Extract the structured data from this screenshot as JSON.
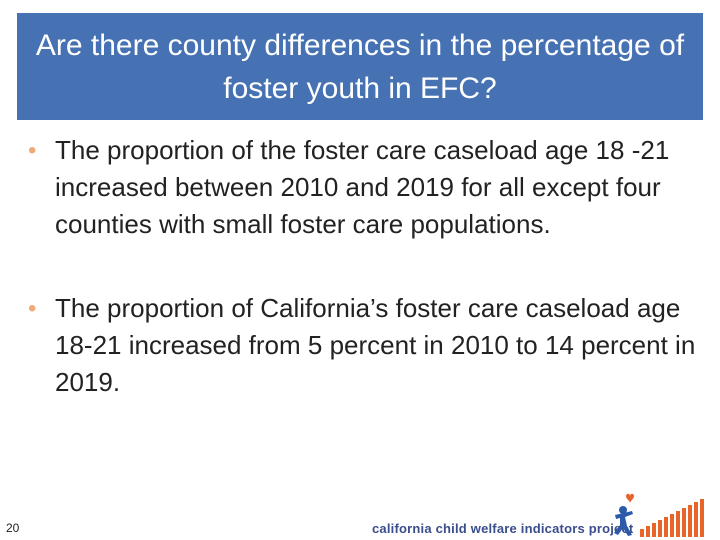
{
  "slide": {
    "title": "Are there county differences in the percentage of foster youth in EFC?",
    "bullets": [
      "The proportion of the foster care caseload age 18 -21 increased between 2010 and 2019 for all except four counties with small foster care populations.",
      "The proportion of California’s foster care caseload age 18-21 increased from 5 percent in 2010 to 14 percent in 2019."
    ],
    "bullet_glyph": "•",
    "page_number": "20"
  },
  "footer": {
    "logo_text": "california child welfare indicators project",
    "logo_icon": "person-with-heart-icon",
    "bars_icon": "rising-bars-icon"
  },
  "colors": {
    "title_bg": "#4672b4",
    "bullet": "#f0aa78",
    "logo_text": "#3a4d8c",
    "bars": "#e8652a"
  }
}
